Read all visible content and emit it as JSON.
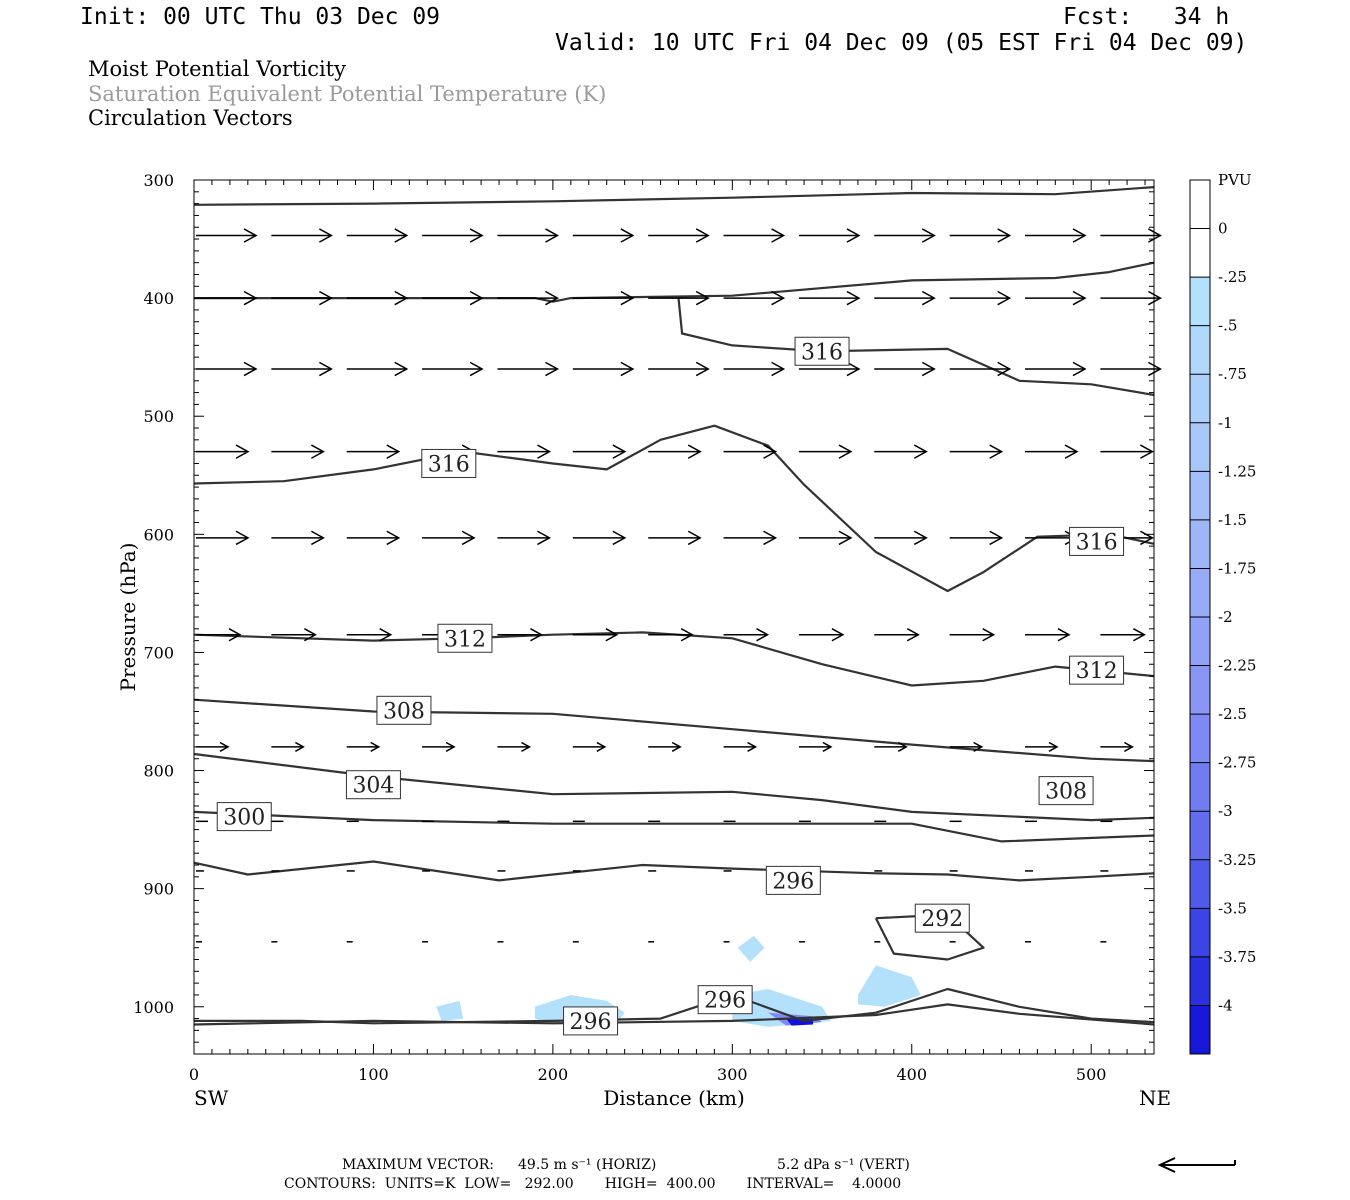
{
  "header": {
    "init": "Init: 00 UTC Thu 03 Dec 09",
    "fcst": "Fcst:   34 h",
    "valid": "Valid: 10 UTC Fri 04 Dec 09 (05 EST Fri 04 Dec 09)"
  },
  "fields": {
    "line1": "Moist Potential Vorticity",
    "line2": "Saturation Equivalent Potential Temperature (K)",
    "line3": "Circulation Vectors"
  },
  "colors": {
    "contour": "#333333",
    "shading_light": "#b3e0fb",
    "shading_mid": "#9aa8f5",
    "shading_dark": "#1010e0"
  },
  "chart_data": {
    "type": "cross-section",
    "xlabel": "Distance (km)",
    "ylabel": "Pressure (hPa)",
    "xlim": [
      0,
      535
    ],
    "ylim": [
      1040,
      300
    ],
    "x_ticks": [
      0,
      100,
      200,
      300,
      400,
      500
    ],
    "y_ticks": [
      300,
      400,
      500,
      600,
      700,
      800,
      900,
      1000
    ],
    "x_end_labels": {
      "left": "SW",
      "right": "NE"
    },
    "colorbar": {
      "units": "PVU",
      "labels": [
        "0",
        "-.25",
        "-.5",
        "-.75",
        "-1",
        "-1.25",
        "-1.5",
        "-1.75",
        "-2",
        "-2.25",
        "-2.5",
        "-2.75",
        "-3",
        "-3.25",
        "-3.5",
        "-3.75",
        "-4"
      ],
      "colors": [
        "#ffffff",
        "#ffffff",
        "#b3e0fb",
        "#b0d8fb",
        "#acd0fa",
        "#a8c7f9",
        "#a3bef8",
        "#9eb5f7",
        "#98abf6",
        "#91a1f5",
        "#8996f4",
        "#7f89f3",
        "#727cf1",
        "#626ced",
        "#505ae8",
        "#3c45e3",
        "#2a30de",
        "#1818d8"
      ]
    },
    "contour_labels": [
      {
        "text": "316",
        "x": 350,
        "p": 445
      },
      {
        "text": "316",
        "x": 142,
        "p": 540
      },
      {
        "text": "316",
        "x": 503,
        "p": 606
      },
      {
        "text": "312",
        "x": 151,
        "p": 688
      },
      {
        "text": "312",
        "x": 503,
        "p": 715
      },
      {
        "text": "308",
        "x": 117,
        "p": 749
      },
      {
        "text": "308",
        "x": 486,
        "p": 817
      },
      {
        "text": "304",
        "x": 100,
        "p": 812
      },
      {
        "text": "300",
        "x": 28,
        "p": 839
      },
      {
        "text": "296",
        "x": 334,
        "p": 893
      },
      {
        "text": "292",
        "x": 417,
        "p": 925
      },
      {
        "text": "296",
        "x": 296,
        "p": 994
      },
      {
        "text": "296",
        "x": 221,
        "p": 1012
      }
    ],
    "contours": [
      [
        [
          0,
          321
        ],
        [
          100,
          320
        ],
        [
          200,
          318
        ],
        [
          300,
          315
        ],
        [
          400,
          311
        ],
        [
          480,
          312
        ],
        [
          535,
          306
        ]
      ],
      [
        [
          0,
          400
        ],
        [
          100,
          400
        ],
        [
          190,
          400
        ],
        [
          200,
          403
        ],
        [
          210,
          400
        ],
        [
          300,
          398
        ],
        [
          400,
          385
        ],
        [
          480,
          383
        ],
        [
          510,
          378
        ],
        [
          535,
          370
        ]
      ],
      [
        [
          270,
          400
        ],
        [
          272,
          430
        ],
        [
          300,
          440
        ],
        [
          350,
          445
        ],
        [
          420,
          443
        ],
        [
          460,
          470
        ],
        [
          500,
          473
        ],
        [
          535,
          482
        ]
      ],
      [
        [
          0,
          557
        ],
        [
          50,
          555
        ],
        [
          100,
          545
        ],
        [
          150,
          530
        ],
        [
          200,
          540
        ],
        [
          230,
          545
        ],
        [
          260,
          520
        ],
        [
          290,
          508
        ],
        [
          320,
          525
        ],
        [
          340,
          558
        ],
        [
          380,
          615
        ],
        [
          420,
          648
        ],
        [
          440,
          632
        ],
        [
          470,
          602
        ],
        [
          510,
          600
        ],
        [
          535,
          608
        ]
      ],
      [
        [
          0,
          685
        ],
        [
          100,
          690
        ],
        [
          150,
          688
        ],
        [
          200,
          685
        ],
        [
          250,
          683
        ],
        [
          300,
          688
        ],
        [
          350,
          710
        ],
        [
          400,
          728
        ],
        [
          440,
          724
        ],
        [
          480,
          712
        ],
        [
          535,
          720
        ]
      ],
      [
        [
          0,
          740
        ],
        [
          100,
          750
        ],
        [
          200,
          752
        ],
        [
          300,
          765
        ],
        [
          400,
          778
        ],
        [
          500,
          790
        ],
        [
          535,
          792
        ]
      ],
      [
        [
          0,
          786
        ],
        [
          100,
          805
        ],
        [
          200,
          820
        ],
        [
          300,
          818
        ],
        [
          350,
          825
        ],
        [
          400,
          835
        ],
        [
          500,
          842
        ],
        [
          535,
          840
        ]
      ],
      [
        [
          0,
          835
        ],
        [
          100,
          842
        ],
        [
          200,
          845
        ],
        [
          300,
          845
        ],
        [
          400,
          845
        ],
        [
          450,
          860
        ],
        [
          535,
          855
        ]
      ],
      [
        [
          0,
          878
        ],
        [
          30,
          888
        ],
        [
          100,
          877
        ],
        [
          170,
          893
        ],
        [
          200,
          888
        ],
        [
          250,
          880
        ],
        [
          300,
          883
        ],
        [
          380,
          887
        ],
        [
          420,
          888
        ],
        [
          460,
          893
        ],
        [
          500,
          890
        ],
        [
          535,
          887
        ]
      ],
      [
        [
          380,
          925
        ],
        [
          420,
          922
        ],
        [
          440,
          950
        ],
        [
          420,
          960
        ],
        [
          390,
          955
        ],
        [
          380,
          925
        ]
      ],
      [
        [
          0,
          1012
        ],
        [
          60,
          1012
        ],
        [
          100,
          1014
        ],
        [
          200,
          1012
        ],
        [
          260,
          1010
        ],
        [
          300,
          990
        ],
        [
          340,
          1012
        ],
        [
          380,
          1005
        ],
        [
          420,
          985
        ],
        [
          460,
          1000
        ],
        [
          500,
          1010
        ],
        [
          535,
          1013
        ]
      ],
      [
        [
          0,
          1015
        ],
        [
          100,
          1012
        ],
        [
          200,
          1014
        ],
        [
          300,
          1012
        ],
        [
          380,
          1007
        ],
        [
          420,
          998
        ],
        [
          460,
          1006
        ],
        [
          535,
          1015
        ]
      ]
    ],
    "shading": [
      {
        "color": "#b3e0fb",
        "points": [
          [
            135,
            1000
          ],
          [
            148,
            995
          ],
          [
            150,
            1010
          ],
          [
            138,
            1012
          ]
        ]
      },
      {
        "color": "#b3e0fb",
        "points": [
          [
            190,
            1000
          ],
          [
            210,
            990
          ],
          [
            230,
            995
          ],
          [
            240,
            1005
          ],
          [
            235,
            1015
          ],
          [
            200,
            1015
          ],
          [
            190,
            1010
          ]
        ]
      },
      {
        "color": "#b3e0fb",
        "points": [
          [
            303,
            950
          ],
          [
            312,
            940
          ],
          [
            318,
            950
          ],
          [
            310,
            962
          ]
        ]
      },
      {
        "color": "#b3e0fb",
        "points": [
          [
            300,
            990
          ],
          [
            320,
            985
          ],
          [
            350,
            1000
          ],
          [
            355,
            1012
          ],
          [
            320,
            1017
          ],
          [
            300,
            1012
          ]
        ]
      },
      {
        "color": "#b3e0fb",
        "points": [
          [
            370,
            990
          ],
          [
            380,
            965
          ],
          [
            400,
            975
          ],
          [
            405,
            990
          ],
          [
            385,
            1000
          ],
          [
            370,
            998
          ]
        ]
      },
      {
        "color": "#7f89f3",
        "points": [
          [
            320,
            1005
          ],
          [
            345,
            1008
          ],
          [
            350,
            1013
          ],
          [
            330,
            1016
          ]
        ]
      },
      {
        "color": "#1010e0",
        "points": [
          [
            330,
            1010
          ],
          [
            345,
            1010
          ],
          [
            345,
            1015
          ],
          [
            333,
            1016
          ]
        ]
      }
    ],
    "vector_rows": [
      {
        "p": 347,
        "len": 0.3
      },
      {
        "p": 400,
        "len": 0.3
      },
      {
        "p": 460,
        "len": 0.3
      },
      {
        "p": 530,
        "len": 0.26
      },
      {
        "p": 603,
        "len": 0.26
      },
      {
        "p": 685,
        "len": 0.22
      },
      {
        "p": 780,
        "len": 0.16
      },
      {
        "p": 843,
        "len": 0.06
      },
      {
        "p": 885,
        "len": 0.04
      },
      {
        "p": 945,
        "len": 0.03
      }
    ],
    "vector_x": [
      0,
      42,
      84,
      126,
      168,
      210,
      252,
      294,
      336,
      378,
      420,
      462,
      504
    ]
  },
  "footer": {
    "max_vector_label": "MAXIMUM VECTOR:",
    "horiz_value": "49.5 m s⁻¹ (HORIZ)",
    "vert_value": "5.2 dPa s⁻¹ (VERT)",
    "contours_line": "CONTOURS:  UNITS=K  LOW=   292.00       HIGH=  400.00       INTERVAL=    4.0000"
  }
}
